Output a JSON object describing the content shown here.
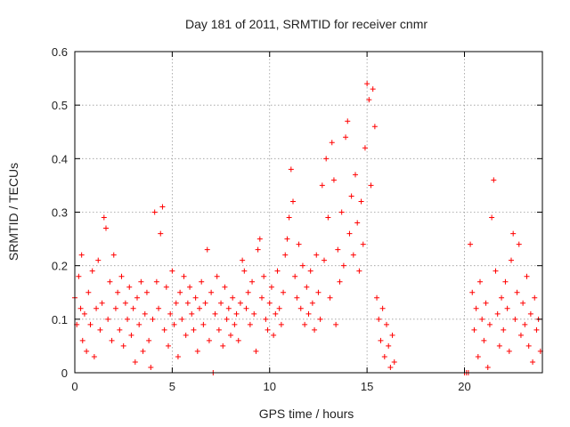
{
  "chart_data": {
    "type": "scatter",
    "title": "Day 181 of 2011, SRMTID for receiver cnmr",
    "xlabel": "GPS time / hours",
    "ylabel": "SRMTID / TECUs",
    "xlim": [
      0,
      24
    ],
    "ylim": [
      0,
      0.6
    ],
    "xticks": [
      "0",
      "5",
      "10",
      "15",
      "20"
    ],
    "xtick_values": [
      0,
      5,
      10,
      15,
      20
    ],
    "yticks": [
      "0",
      "0.1",
      "0.2",
      "0.3",
      "0.4",
      "0.5",
      "0.6"
    ],
    "ytick_values": [
      0,
      0.1,
      0.2,
      0.3,
      0.4,
      0.5,
      0.6
    ],
    "grid": true,
    "marker": "plus",
    "series": [
      {
        "name": "SRMTID",
        "color": "#ff0000",
        "points": [
          [
            0.0,
            0.14
          ],
          [
            0.1,
            0.09
          ],
          [
            0.2,
            0.18
          ],
          [
            0.3,
            0.12
          ],
          [
            0.35,
            0.22
          ],
          [
            0.4,
            0.06
          ],
          [
            0.5,
            0.11
          ],
          [
            0.6,
            0.04
          ],
          [
            0.7,
            0.15
          ],
          [
            0.8,
            0.09
          ],
          [
            0.9,
            0.19
          ],
          [
            1.0,
            0.03
          ],
          [
            1.1,
            0.12
          ],
          [
            1.2,
            0.21
          ],
          [
            1.3,
            0.08
          ],
          [
            1.4,
            0.13
          ],
          [
            1.5,
            0.29
          ],
          [
            1.6,
            0.27
          ],
          [
            1.7,
            0.1
          ],
          [
            1.8,
            0.17
          ],
          [
            1.9,
            0.06
          ],
          [
            2.0,
            0.22
          ],
          [
            2.1,
            0.12
          ],
          [
            2.2,
            0.15
          ],
          [
            2.3,
            0.08
          ],
          [
            2.4,
            0.18
          ],
          [
            2.5,
            0.05
          ],
          [
            2.6,
            0.13
          ],
          [
            2.7,
            0.1
          ],
          [
            2.8,
            0.16
          ],
          [
            2.9,
            0.07
          ],
          [
            3.0,
            0.12
          ],
          [
            3.1,
            0.02
          ],
          [
            3.2,
            0.14
          ],
          [
            3.3,
            0.09
          ],
          [
            3.4,
            0.17
          ],
          [
            3.5,
            0.04
          ],
          [
            3.6,
            0.11
          ],
          [
            3.7,
            0.15
          ],
          [
            3.8,
            0.06
          ],
          [
            3.9,
            0.01
          ],
          [
            4.0,
            0.1
          ],
          [
            4.1,
            0.3
          ],
          [
            4.2,
            0.17
          ],
          [
            4.3,
            0.12
          ],
          [
            4.4,
            0.26
          ],
          [
            4.5,
            0.31
          ],
          [
            4.6,
            0.08
          ],
          [
            4.7,
            0.16
          ],
          [
            4.8,
            0.05
          ],
          [
            4.9,
            0.11
          ],
          [
            5.0,
            0.19
          ],
          [
            5.1,
            0.09
          ],
          [
            5.2,
            0.13
          ],
          [
            5.3,
            0.03
          ],
          [
            5.4,
            0.15
          ],
          [
            5.5,
            0.1
          ],
          [
            5.6,
            0.18
          ],
          [
            5.7,
            0.07
          ],
          [
            5.8,
            0.13
          ],
          [
            5.9,
            0.16
          ],
          [
            6.0,
            0.11
          ],
          [
            6.1,
            0.08
          ],
          [
            6.2,
            0.14
          ],
          [
            6.3,
            0.04
          ],
          [
            6.4,
            0.12
          ],
          [
            6.5,
            0.17
          ],
          [
            6.6,
            0.09
          ],
          [
            6.7,
            0.13
          ],
          [
            6.8,
            0.23
          ],
          [
            6.9,
            0.06
          ],
          [
            7.0,
            0.15
          ],
          [
            7.1,
            0.0
          ],
          [
            7.2,
            0.11
          ],
          [
            7.3,
            0.18
          ],
          [
            7.4,
            0.08
          ],
          [
            7.5,
            0.13
          ],
          [
            7.6,
            0.05
          ],
          [
            7.7,
            0.16
          ],
          [
            7.8,
            0.1
          ],
          [
            7.9,
            0.12
          ],
          [
            8.0,
            0.07
          ],
          [
            8.1,
            0.14
          ],
          [
            8.2,
            0.09
          ],
          [
            8.3,
            0.11
          ],
          [
            8.4,
            0.06
          ],
          [
            8.5,
            0.13
          ],
          [
            8.6,
            0.21
          ],
          [
            8.7,
            0.19
          ],
          [
            8.8,
            0.12
          ],
          [
            8.9,
            0.15
          ],
          [
            9.0,
            0.09
          ],
          [
            9.1,
            0.17
          ],
          [
            9.2,
            0.11
          ],
          [
            9.3,
            0.04
          ],
          [
            9.4,
            0.23
          ],
          [
            9.5,
            0.25
          ],
          [
            9.6,
            0.14
          ],
          [
            9.7,
            0.18
          ],
          [
            9.8,
            0.1
          ],
          [
            9.9,
            0.08
          ],
          [
            10.0,
            0.13
          ],
          [
            10.1,
            0.16
          ],
          [
            10.2,
            0.07
          ],
          [
            10.3,
            0.11
          ],
          [
            10.4,
            0.19
          ],
          [
            10.5,
            0.12
          ],
          [
            10.6,
            0.09
          ],
          [
            10.7,
            0.15
          ],
          [
            10.8,
            0.22
          ],
          [
            10.9,
            0.25
          ],
          [
            11.0,
            0.29
          ],
          [
            11.1,
            0.38
          ],
          [
            11.2,
            0.32
          ],
          [
            11.3,
            0.18
          ],
          [
            11.4,
            0.14
          ],
          [
            11.5,
            0.24
          ],
          [
            11.6,
            0.12
          ],
          [
            11.7,
            0.2
          ],
          [
            11.8,
            0.09
          ],
          [
            11.9,
            0.16
          ],
          [
            12.0,
            0.11
          ],
          [
            12.1,
            0.19
          ],
          [
            12.2,
            0.13
          ],
          [
            12.3,
            0.08
          ],
          [
            12.4,
            0.22
          ],
          [
            12.5,
            0.15
          ],
          [
            12.6,
            0.1
          ],
          [
            12.7,
            0.35
          ],
          [
            12.8,
            0.21
          ],
          [
            12.9,
            0.4
          ],
          [
            13.0,
            0.29
          ],
          [
            13.1,
            0.14
          ],
          [
            13.2,
            0.43
          ],
          [
            13.3,
            0.36
          ],
          [
            13.4,
            0.09
          ],
          [
            13.5,
            0.23
          ],
          [
            13.6,
            0.17
          ],
          [
            13.7,
            0.3
          ],
          [
            13.8,
            0.2
          ],
          [
            13.9,
            0.44
          ],
          [
            14.0,
            0.47
          ],
          [
            14.1,
            0.26
          ],
          [
            14.2,
            0.33
          ],
          [
            14.3,
            0.22
          ],
          [
            14.4,
            0.37
          ],
          [
            14.5,
            0.28
          ],
          [
            14.6,
            0.19
          ],
          [
            14.7,
            0.32
          ],
          [
            14.8,
            0.24
          ],
          [
            14.9,
            0.42
          ],
          [
            15.0,
            0.54
          ],
          [
            15.1,
            0.51
          ],
          [
            15.2,
            0.35
          ],
          [
            15.3,
            0.53
          ],
          [
            15.4,
            0.46
          ],
          [
            15.5,
            0.14
          ],
          [
            15.6,
            0.1
          ],
          [
            15.7,
            0.06
          ],
          [
            15.8,
            0.12
          ],
          [
            15.9,
            0.03
          ],
          [
            16.0,
            0.09
          ],
          [
            16.1,
            0.05
          ],
          [
            16.2,
            0.01
          ],
          [
            16.3,
            0.07
          ],
          [
            16.4,
            0.02
          ],
          [
            20.0,
            0.0
          ],
          [
            20.1,
            0.0
          ],
          [
            20.2,
            0.0
          ],
          [
            20.3,
            0.24
          ],
          [
            20.4,
            0.15
          ],
          [
            20.5,
            0.08
          ],
          [
            20.6,
            0.12
          ],
          [
            20.7,
            0.03
          ],
          [
            20.8,
            0.17
          ],
          [
            20.9,
            0.1
          ],
          [
            21.0,
            0.06
          ],
          [
            21.1,
            0.13
          ],
          [
            21.2,
            0.01
          ],
          [
            21.3,
            0.09
          ],
          [
            21.4,
            0.29
          ],
          [
            21.5,
            0.36
          ],
          [
            21.6,
            0.19
          ],
          [
            21.7,
            0.11
          ],
          [
            21.8,
            0.05
          ],
          [
            21.9,
            0.14
          ],
          [
            22.0,
            0.08
          ],
          [
            22.1,
            0.17
          ],
          [
            22.2,
            0.12
          ],
          [
            22.3,
            0.04
          ],
          [
            22.4,
            0.21
          ],
          [
            22.5,
            0.26
          ],
          [
            22.6,
            0.1
          ],
          [
            22.7,
            0.15
          ],
          [
            22.8,
            0.24
          ],
          [
            22.9,
            0.07
          ],
          [
            23.0,
            0.13
          ],
          [
            23.1,
            0.09
          ],
          [
            23.2,
            0.18
          ],
          [
            23.3,
            0.05
          ],
          [
            23.4,
            0.11
          ],
          [
            23.5,
            0.02
          ],
          [
            23.6,
            0.14
          ],
          [
            23.7,
            0.08
          ],
          [
            23.8,
            0.1
          ],
          [
            23.9,
            0.04
          ]
        ]
      }
    ]
  }
}
